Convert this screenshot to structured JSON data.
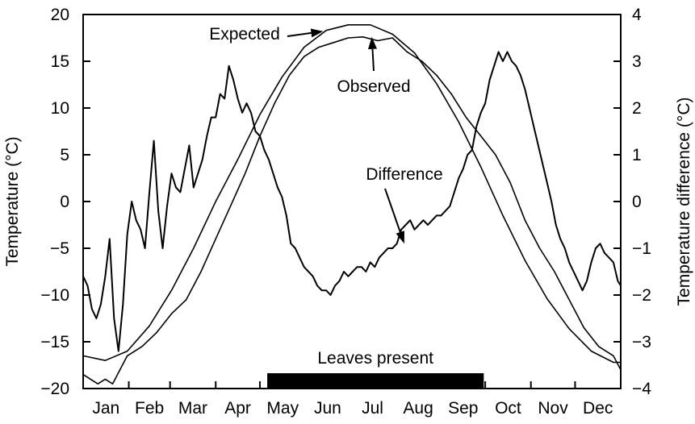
{
  "chart_data": {
    "type": "line",
    "title": "",
    "xlabel": "",
    "ylabel": "Temperature (°C)",
    "y2label": "Temperature difference (°C)",
    "ylim": [
      -20,
      20
    ],
    "y2lim": [
      -4,
      4
    ],
    "yticks": [
      -20,
      -15,
      -10,
      -5,
      0,
      5,
      10,
      15,
      20
    ],
    "y2ticks": [
      -4,
      -3,
      -2,
      -1,
      0,
      1,
      2,
      3,
      4
    ],
    "ytick_labels": [
      "−20",
      "−15",
      "−10",
      "−5",
      "0",
      "5",
      "10",
      "15",
      "20"
    ],
    "y2tick_labels": [
      "−4",
      "−3",
      "−2",
      "−1",
      "0",
      "1",
      "2",
      "3",
      "4"
    ],
    "xlim": [
      0,
      365
    ],
    "months": [
      "Jan",
      "Feb",
      "Mar",
      "Apr",
      "May",
      "Jun",
      "Jul",
      "Aug",
      "Sep",
      "Oct",
      "Nov",
      "Dec"
    ],
    "month_centers": [
      15.5,
      45,
      74.5,
      105,
      135.5,
      166,
      196.5,
      227.5,
      258,
      288.5,
      319,
      349.5
    ],
    "grid": false,
    "series": [
      {
        "name": "Expected",
        "axis": "left",
        "x": [
          0,
          15,
          30,
          45,
          60,
          75,
          90,
          105,
          120,
          135,
          150,
          165,
          180,
          195,
          210,
          225,
          240,
          255,
          270,
          285,
          300,
          315,
          330,
          345,
          360,
          365
        ],
        "values": [
          -16.5,
          -17.0,
          -16.0,
          -13.3,
          -9.5,
          -5.0,
          0.0,
          4.5,
          9.3,
          13.3,
          16.5,
          18.3,
          18.9,
          18.9,
          17.9,
          15.9,
          12.6,
          8.5,
          3.7,
          -1.5,
          -6.3,
          -10.4,
          -13.6,
          -16.0,
          -17.2,
          -17.2
        ]
      },
      {
        "name": "Observed",
        "axis": "left",
        "x": [
          0,
          5,
          10,
          15,
          20,
          25,
          30,
          40,
          50,
          60,
          70,
          80,
          90,
          100,
          110,
          120,
          130,
          140,
          150,
          160,
          170,
          180,
          190,
          200,
          210,
          220,
          230,
          240,
          250,
          260,
          270,
          280,
          290,
          300,
          310,
          320,
          330,
          340,
          350,
          360,
          365
        ],
        "values": [
          -18.5,
          -19.0,
          -19.5,
          -19.0,
          -19.5,
          -18.0,
          -16.5,
          -15.5,
          -14.0,
          -12.0,
          -10.5,
          -7.5,
          -4.0,
          -0.5,
          3.0,
          7.0,
          10.5,
          13.5,
          15.5,
          16.5,
          17.0,
          17.5,
          17.6,
          17.2,
          17.5,
          16.0,
          15.0,
          13.5,
          11.5,
          9.0,
          7.0,
          5.0,
          2.0,
          -2.0,
          -5.0,
          -7.5,
          -10.5,
          -13.5,
          -15.5,
          -16.5,
          -18.0
        ]
      },
      {
        "name": "Difference",
        "axis": "right",
        "x": [
          0,
          3,
          6,
          9,
          12,
          15,
          18,
          21,
          24,
          27,
          30,
          33,
          36,
          39,
          42,
          45,
          48,
          51,
          54,
          57,
          60,
          63,
          66,
          69,
          72,
          75,
          78,
          81,
          84,
          87,
          90,
          93,
          96,
          99,
          102,
          105,
          108,
          111,
          114,
          117,
          120,
          123,
          126,
          129,
          132,
          135,
          138,
          141,
          144,
          147,
          150,
          153,
          156,
          159,
          162,
          165,
          168,
          171,
          174,
          177,
          180,
          183,
          186,
          189,
          192,
          195,
          198,
          201,
          204,
          207,
          210,
          213,
          216,
          219,
          222,
          225,
          228,
          231,
          234,
          237,
          240,
          243,
          246,
          249,
          252,
          255,
          258,
          261,
          264,
          267,
          270,
          273,
          276,
          279,
          282,
          285,
          288,
          291,
          294,
          297,
          300,
          303,
          306,
          309,
          312,
          315,
          318,
          321,
          324,
          327,
          330,
          333,
          336,
          339,
          342,
          345,
          348,
          351,
          354,
          357,
          360,
          363,
          365
        ],
        "values": [
          -1.6,
          -1.8,
          -2.3,
          -2.5,
          -2.2,
          -1.6,
          -0.8,
          -2.5,
          -3.2,
          -2.2,
          -0.7,
          0.0,
          -0.4,
          -0.6,
          -1.0,
          0.2,
          1.3,
          -0.2,
          -1.0,
          -0.1,
          0.6,
          0.3,
          0.2,
          0.7,
          1.2,
          0.3,
          0.6,
          0.9,
          1.4,
          1.8,
          1.8,
          2.3,
          2.2,
          2.9,
          2.6,
          2.2,
          1.9,
          2.1,
          1.9,
          1.5,
          1.4,
          1.1,
          0.9,
          0.6,
          0.3,
          0.1,
          -0.3,
          -0.9,
          -1.0,
          -1.2,
          -1.4,
          -1.5,
          -1.6,
          -1.8,
          -1.9,
          -1.9,
          -2.0,
          -1.8,
          -1.7,
          -1.5,
          -1.6,
          -1.5,
          -1.4,
          -1.4,
          -1.5,
          -1.3,
          -1.4,
          -1.2,
          -1.1,
          -1.0,
          -1.0,
          -0.9,
          -0.6,
          -0.5,
          -0.4,
          -0.6,
          -0.5,
          -0.4,
          -0.5,
          -0.4,
          -0.3,
          -0.3,
          -0.2,
          -0.1,
          0.2,
          0.5,
          0.7,
          1.0,
          1.1,
          1.6,
          1.9,
          2.1,
          2.6,
          2.9,
          3.2,
          3.0,
          3.2,
          3.0,
          2.9,
          2.7,
          2.4,
          2.0,
          1.6,
          1.2,
          0.8,
          0.4,
          0.0,
          -0.5,
          -0.8,
          -1.0,
          -1.3,
          -1.5,
          -1.7,
          -1.9,
          -1.7,
          -1.3,
          -1.0,
          -0.9,
          -1.1,
          -1.2,
          -1.3,
          -1.7,
          -1.8
        ]
      }
    ],
    "annotations": [
      {
        "text": "Expected",
        "target_series": "Expected",
        "target_x": 163,
        "target_y": 18.2
      },
      {
        "text": "Observed",
        "target_series": "Observed",
        "target_x": 196,
        "target_y": 17.6
      },
      {
        "text": "Difference",
        "target_series": "Difference",
        "target_x": 218,
        "target_y": -0.9
      }
    ],
    "leaves_present": {
      "label": "Leaves present",
      "start_day": 125,
      "end_day": 272
    }
  }
}
